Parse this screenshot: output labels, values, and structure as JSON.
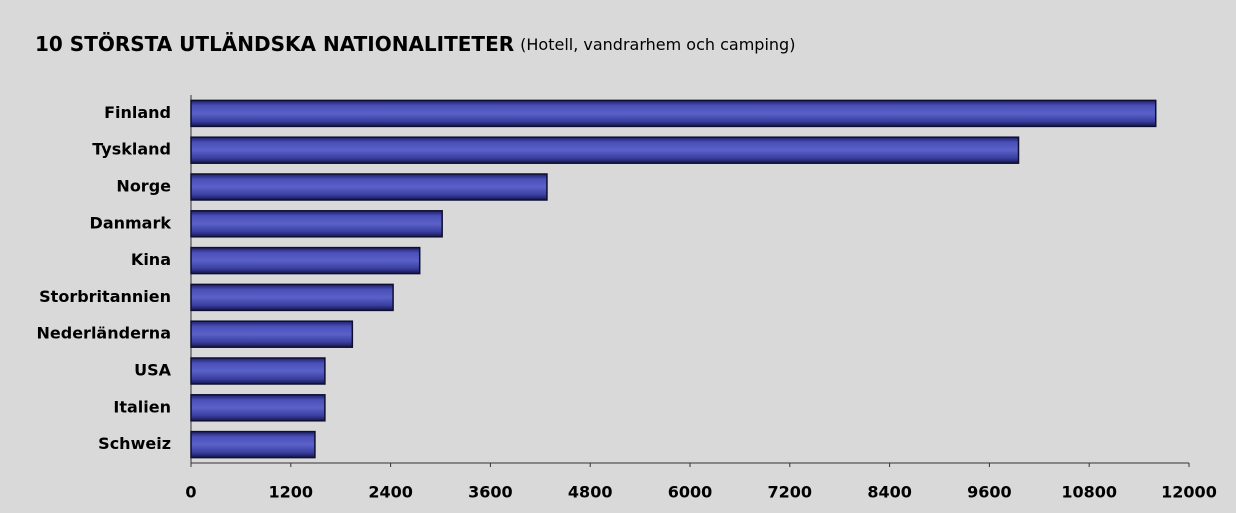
{
  "chart_data": {
    "type": "bar",
    "orientation": "horizontal",
    "title": "10 STÖRSTA UTLÄNDSKA NATIONALITETER",
    "subtitle": "(Hotell, vandrarhem och camping)",
    "categories": [
      "Finland",
      "Tyskland",
      "Norge",
      "Danmark",
      "Kina",
      "Storbritannien",
      "Nederländerna",
      "USA",
      "Italien",
      "Schweiz"
    ],
    "values": [
      11600,
      9950,
      4280,
      3020,
      2750,
      2430,
      1940,
      1610,
      1610,
      1490
    ],
    "color": "#3b40a0",
    "xlim": [
      0,
      12000
    ],
    "xticks": [
      0,
      1200,
      2400,
      3600,
      4800,
      6000,
      7200,
      8400,
      9600,
      10800,
      12000
    ],
    "grid": false
  }
}
